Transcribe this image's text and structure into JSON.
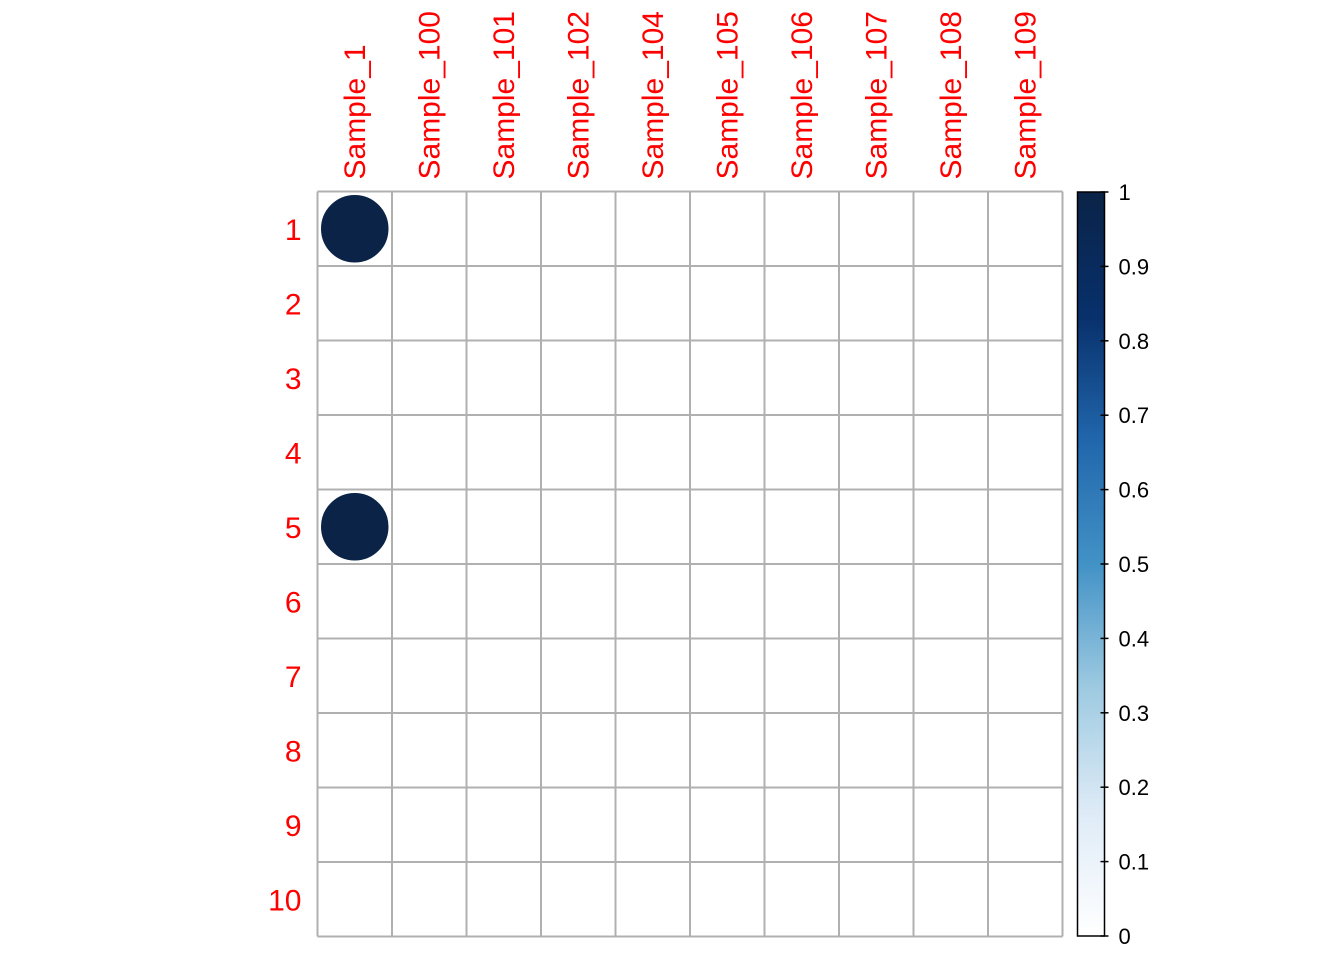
{
  "chart_data": {
    "type": "heatmap",
    "title": "",
    "xlabel": "",
    "ylabel": "",
    "columns": [
      "Sample_1",
      "Sample_100",
      "Sample_101",
      "Sample_102",
      "Sample_104",
      "Sample_105",
      "Sample_106",
      "Sample_107",
      "Sample_108",
      "Sample_109"
    ],
    "rows": [
      "1",
      "2",
      "3",
      "4",
      "5",
      "6",
      "7",
      "8",
      "9",
      "10"
    ],
    "values": [
      [
        1,
        0,
        0,
        0,
        0,
        0,
        0,
        0,
        0,
        0
      ],
      [
        0,
        0,
        0,
        0,
        0,
        0,
        0,
        0,
        0,
        0
      ],
      [
        0,
        0,
        0,
        0,
        0,
        0,
        0,
        0,
        0,
        0
      ],
      [
        0,
        0,
        0,
        0,
        0,
        0,
        0,
        0,
        0,
        0
      ],
      [
        1,
        0,
        0,
        0,
        0,
        0,
        0,
        0,
        0,
        0
      ],
      [
        0,
        0,
        0,
        0,
        0,
        0,
        0,
        0,
        0,
        0
      ],
      [
        0,
        0,
        0,
        0,
        0,
        0,
        0,
        0,
        0,
        0
      ],
      [
        0,
        0,
        0,
        0,
        0,
        0,
        0,
        0,
        0,
        0
      ],
      [
        0,
        0,
        0,
        0,
        0,
        0,
        0,
        0,
        0,
        0
      ],
      [
        0,
        0,
        0,
        0,
        0,
        0,
        0,
        0,
        0,
        0
      ]
    ],
    "marker": "circle",
    "colorbar": {
      "range": [
        0,
        1
      ],
      "ticks": [
        "0",
        "0.1",
        "0.2",
        "0.3",
        "0.4",
        "0.5",
        "0.6",
        "0.7",
        "0.8",
        "0.9",
        "1"
      ],
      "colors": [
        "#ffffff",
        "#deebf7",
        "#9ecae1",
        "#4292c6",
        "#2166ac",
        "#08306b",
        "#0a2347"
      ]
    },
    "label_color": "#ff0000",
    "grid_color": "#b0b0b0",
    "grid": true
  }
}
